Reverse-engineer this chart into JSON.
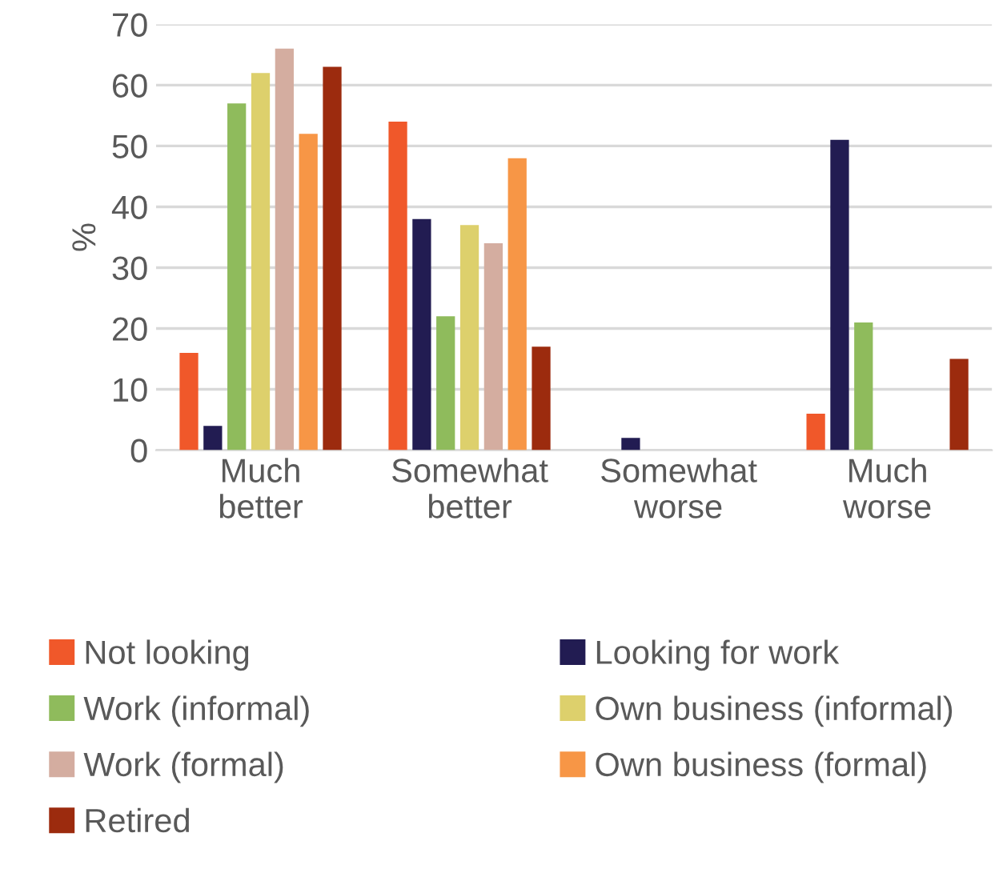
{
  "chart_data": {
    "type": "bar",
    "ylabel": "%",
    "categories": [
      "Much\nbetter",
      "Somewhat\nbetter",
      "Somewhat\nworse",
      "Much\nworse"
    ],
    "series": [
      {
        "name": "Not looking",
        "color": "#f0582a",
        "values": [
          16,
          54,
          0,
          6
        ]
      },
      {
        "name": "Looking for work",
        "color": "#221c52",
        "values": [
          4,
          38,
          2,
          51
        ]
      },
      {
        "name": "Work (informal)",
        "color": "#8fbb5c",
        "values": [
          57,
          22,
          0,
          21
        ]
      },
      {
        "name": "Own business (informal)",
        "color": "#ddd06c",
        "values": [
          62,
          37,
          0,
          0
        ]
      },
      {
        "name": "Work (formal)",
        "color": "#d4ada0",
        "values": [
          66,
          34,
          0,
          0
        ]
      },
      {
        "name": "Own business (formal)",
        "color": "#f79646",
        "values": [
          52,
          48,
          0,
          0
        ]
      },
      {
        "name": "Retired",
        "color": "#9c2b0e",
        "values": [
          63,
          17,
          0,
          15
        ]
      }
    ],
    "ylim": [
      0,
      70
    ],
    "yticks": [
      0,
      10,
      20,
      30,
      40,
      50,
      60,
      70
    ],
    "grid": "y",
    "legend": "bottom"
  }
}
